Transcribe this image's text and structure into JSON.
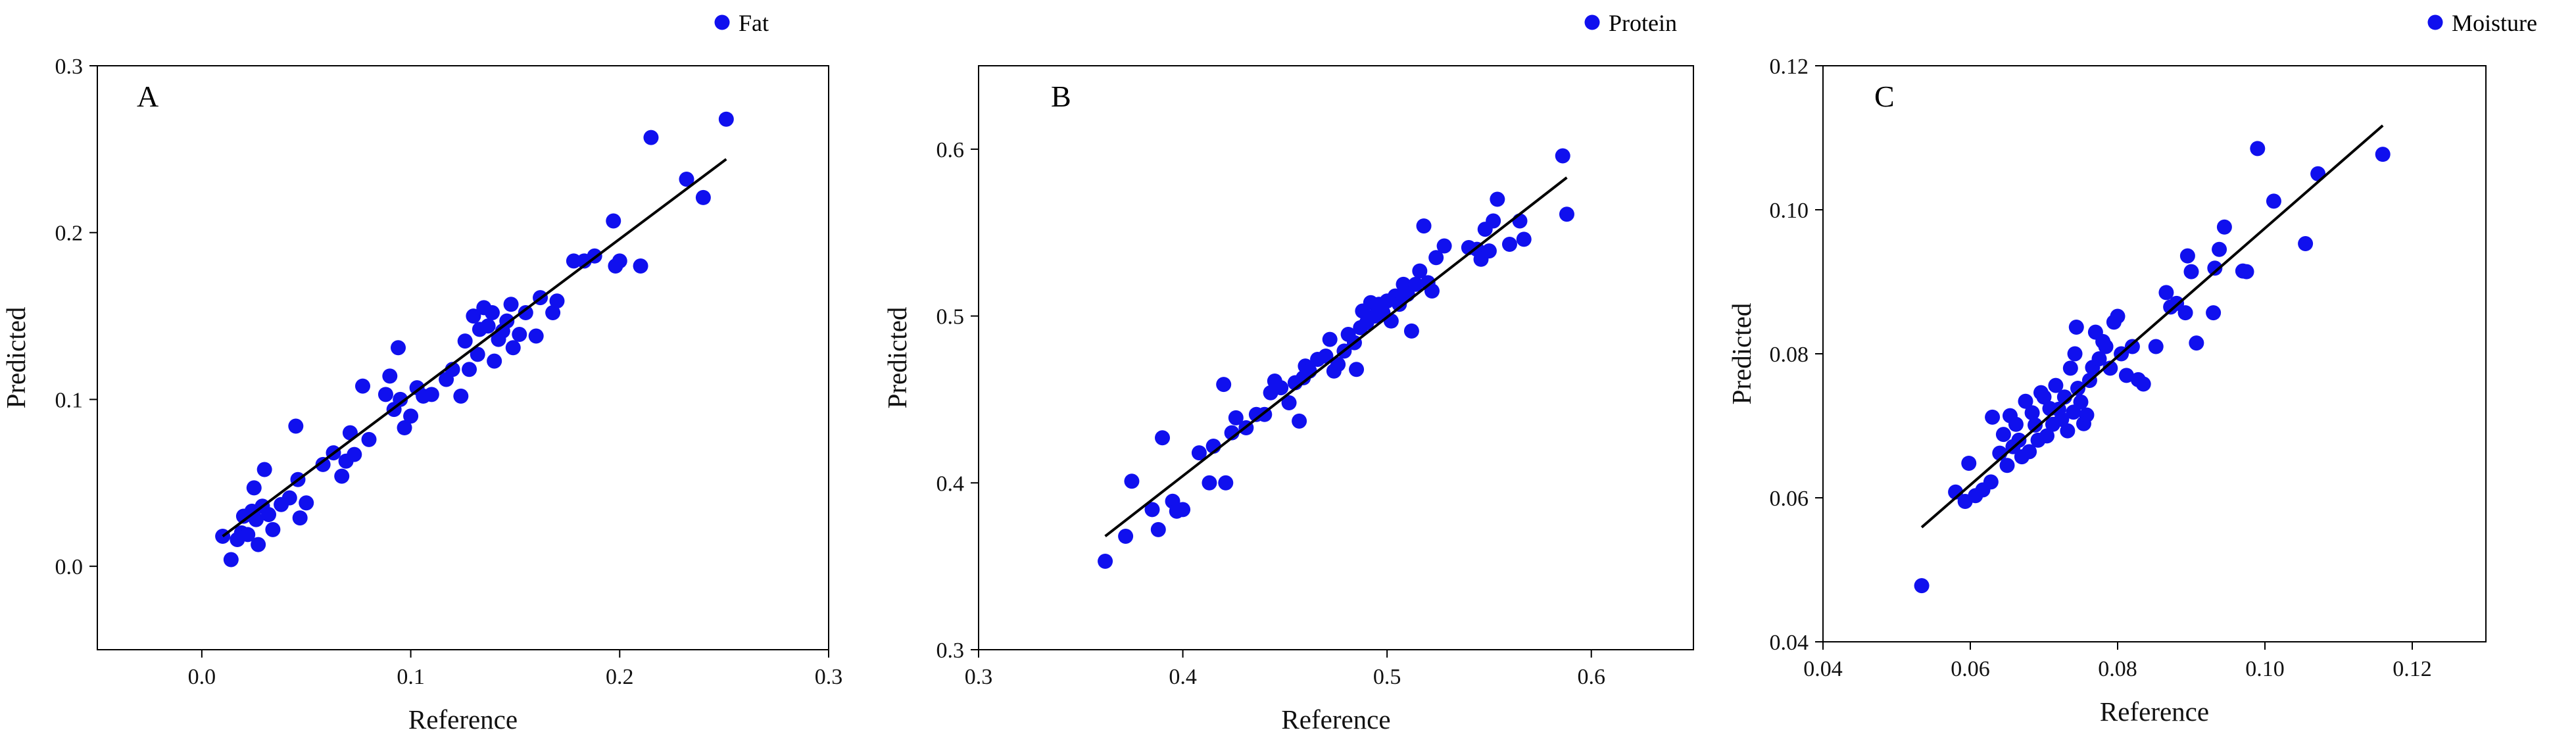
{
  "chart_data": [
    {
      "type": "scatter",
      "panel_label": "A",
      "xlabel": "Reference",
      "ylabel": "Predicted",
      "xlim": [
        -0.05,
        0.3
      ],
      "ylim": [
        -0.05,
        0.3
      ],
      "x_ticks": [
        "0.0",
        "0.1",
        "0.2",
        "0.3"
      ],
      "y_ticks": [
        "0.0",
        "0.1",
        "0.2",
        "0.3"
      ],
      "x_tick_values": [
        0.0,
        0.1,
        0.2,
        0.3
      ],
      "y_tick_values": [
        0.0,
        0.1,
        0.2,
        0.3
      ],
      "grid": false,
      "legend_position": "top-right",
      "point_color": "#1010ee",
      "series": [
        {
          "name": "Fat",
          "points": [
            [
              0.01,
              0.018
            ],
            [
              0.014,
              0.004
            ],
            [
              0.017,
              0.016
            ],
            [
              0.019,
              0.02
            ],
            [
              0.02,
              0.03
            ],
            [
              0.022,
              0.019
            ],
            [
              0.024,
              0.033
            ],
            [
              0.025,
              0.047
            ],
            [
              0.026,
              0.028
            ],
            [
              0.027,
              0.013
            ],
            [
              0.029,
              0.036
            ],
            [
              0.03,
              0.058
            ],
            [
              0.032,
              0.031
            ],
            [
              0.034,
              0.022
            ],
            [
              0.038,
              0.037
            ],
            [
              0.042,
              0.041
            ],
            [
              0.045,
              0.084
            ],
            [
              0.046,
              0.052
            ],
            [
              0.047,
              0.029
            ],
            [
              0.05,
              0.038
            ],
            [
              0.058,
              0.061
            ],
            [
              0.063,
              0.068
            ],
            [
              0.067,
              0.054
            ],
            [
              0.069,
              0.063
            ],
            [
              0.071,
              0.08
            ],
            [
              0.073,
              0.067
            ],
            [
              0.077,
              0.108
            ],
            [
              0.08,
              0.076
            ],
            [
              0.088,
              0.103
            ],
            [
              0.09,
              0.114
            ],
            [
              0.092,
              0.094
            ],
            [
              0.094,
              0.131
            ],
            [
              0.095,
              0.1
            ],
            [
              0.097,
              0.083
            ],
            [
              0.1,
              0.09
            ],
            [
              0.103,
              0.107
            ],
            [
              0.106,
              0.102
            ],
            [
              0.11,
              0.103
            ],
            [
              0.117,
              0.112
            ],
            [
              0.12,
              0.118
            ],
            [
              0.124,
              0.102
            ],
            [
              0.126,
              0.135
            ],
            [
              0.128,
              0.118
            ],
            [
              0.13,
              0.15
            ],
            [
              0.132,
              0.127
            ],
            [
              0.133,
              0.142
            ],
            [
              0.135,
              0.155
            ],
            [
              0.137,
              0.144
            ],
            [
              0.139,
              0.152
            ],
            [
              0.14,
              0.123
            ],
            [
              0.142,
              0.136
            ],
            [
              0.144,
              0.141
            ],
            [
              0.146,
              0.147
            ],
            [
              0.148,
              0.157
            ],
            [
              0.149,
              0.131
            ],
            [
              0.152,
              0.139
            ],
            [
              0.155,
              0.152
            ],
            [
              0.16,
              0.138
            ],
            [
              0.162,
              0.161
            ],
            [
              0.168,
              0.152
            ],
            [
              0.17,
              0.159
            ],
            [
              0.178,
              0.183
            ],
            [
              0.183,
              0.183
            ],
            [
              0.188,
              0.186
            ],
            [
              0.197,
              0.207
            ],
            [
              0.198,
              0.18
            ],
            [
              0.2,
              0.183
            ],
            [
              0.21,
              0.18
            ],
            [
              0.215,
              0.257
            ],
            [
              0.232,
              0.232
            ],
            [
              0.24,
              0.221
            ],
            [
              0.251,
              0.268
            ]
          ]
        }
      ],
      "fit_line": {
        "x": [
          0.01,
          0.251
        ],
        "y": [
          0.018,
          0.244
        ]
      }
    },
    {
      "type": "scatter",
      "panel_label": "B",
      "xlabel": "Reference",
      "ylabel": "Predicted",
      "xlim": [
        0.3,
        0.65
      ],
      "ylim": [
        0.3,
        0.65
      ],
      "x_ticks": [
        "0.3",
        "0.4",
        "0.5",
        "0.6"
      ],
      "y_ticks": [
        "0.3",
        "0.4",
        "0.5",
        "0.6"
      ],
      "x_tick_values": [
        0.3,
        0.4,
        0.5,
        0.6
      ],
      "y_tick_values": [
        0.3,
        0.4,
        0.5,
        0.6
      ],
      "grid": false,
      "legend_position": "top-right",
      "point_color": "#1010ee",
      "series": [
        {
          "name": "Protein",
          "points": [
            [
              0.362,
              0.353
            ],
            [
              0.372,
              0.368
            ],
            [
              0.375,
              0.401
            ],
            [
              0.385,
              0.384
            ],
            [
              0.388,
              0.372
            ],
            [
              0.39,
              0.427
            ],
            [
              0.395,
              0.389
            ],
            [
              0.397,
              0.383
            ],
            [
              0.4,
              0.384
            ],
            [
              0.408,
              0.418
            ],
            [
              0.413,
              0.4
            ],
            [
              0.415,
              0.422
            ],
            [
              0.42,
              0.459
            ],
            [
              0.421,
              0.4
            ],
            [
              0.424,
              0.43
            ],
            [
              0.426,
              0.439
            ],
            [
              0.431,
              0.433
            ],
            [
              0.436,
              0.441
            ],
            [
              0.44,
              0.441
            ],
            [
              0.443,
              0.454
            ],
            [
              0.445,
              0.461
            ],
            [
              0.448,
              0.457
            ],
            [
              0.452,
              0.448
            ],
            [
              0.455,
              0.46
            ],
            [
              0.457,
              0.437
            ],
            [
              0.459,
              0.463
            ],
            [
              0.46,
              0.47
            ],
            [
              0.462,
              0.467
            ],
            [
              0.466,
              0.474
            ],
            [
              0.47,
              0.476
            ],
            [
              0.472,
              0.486
            ],
            [
              0.474,
              0.467
            ],
            [
              0.476,
              0.471
            ],
            [
              0.479,
              0.479
            ],
            [
              0.481,
              0.489
            ],
            [
              0.484,
              0.484
            ],
            [
              0.485,
              0.468
            ],
            [
              0.487,
              0.493
            ],
            [
              0.488,
              0.503
            ],
            [
              0.49,
              0.496
            ],
            [
              0.492,
              0.508
            ],
            [
              0.494,
              0.5
            ],
            [
              0.496,
              0.507
            ],
            [
              0.498,
              0.502
            ],
            [
              0.5,
              0.509
            ],
            [
              0.502,
              0.497
            ],
            [
              0.504,
              0.512
            ],
            [
              0.506,
              0.507
            ],
            [
              0.508,
              0.519
            ],
            [
              0.51,
              0.513
            ],
            [
              0.512,
              0.491
            ],
            [
              0.514,
              0.519
            ],
            [
              0.516,
              0.527
            ],
            [
              0.518,
              0.554
            ],
            [
              0.52,
              0.52
            ],
            [
              0.522,
              0.515
            ],
            [
              0.524,
              0.535
            ],
            [
              0.528,
              0.542
            ],
            [
              0.54,
              0.541
            ],
            [
              0.544,
              0.54
            ],
            [
              0.546,
              0.534
            ],
            [
              0.548,
              0.552
            ],
            [
              0.55,
              0.539
            ],
            [
              0.552,
              0.557
            ],
            [
              0.554,
              0.57
            ],
            [
              0.56,
              0.543
            ],
            [
              0.565,
              0.557
            ],
            [
              0.567,
              0.546
            ],
            [
              0.586,
              0.596
            ],
            [
              0.588,
              0.561
            ]
          ]
        }
      ],
      "fit_line": {
        "x": [
          0.362,
          0.588
        ],
        "y": [
          0.368,
          0.583
        ]
      }
    },
    {
      "type": "scatter",
      "panel_label": "C",
      "xlabel": "Reference",
      "ylabel": "Predicted",
      "xlim": [
        0.04,
        0.13
      ],
      "ylim": [
        0.04,
        0.12
      ],
      "x_ticks": [
        "0.04",
        "0.06",
        "0.08",
        "0.10",
        "0.12"
      ],
      "y_ticks": [
        "0.04",
        "0.06",
        "0.08",
        "0.10",
        "0.12"
      ],
      "x_tick_values": [
        0.04,
        0.06,
        0.08,
        0.1,
        0.12
      ],
      "y_tick_values": [
        0.04,
        0.06,
        0.08,
        0.1,
        0.12
      ],
      "grid": false,
      "legend_position": "top-right",
      "point_color": "#1010ee",
      "series": [
        {
          "name": "Moisture",
          "points": [
            [
              0.0534,
              0.0478
            ],
            [
              0.058,
              0.0608
            ],
            [
              0.0593,
              0.0595
            ],
            [
              0.0598,
              0.0648
            ],
            [
              0.0607,
              0.0603
            ],
            [
              0.0617,
              0.0611
            ],
            [
              0.0628,
              0.0622
            ],
            [
              0.063,
              0.0712
            ],
            [
              0.064,
              0.0662
            ],
            [
              0.0645,
              0.0688
            ],
            [
              0.065,
              0.0645
            ],
            [
              0.0654,
              0.0714
            ],
            [
              0.0658,
              0.0671
            ],
            [
              0.0662,
              0.0702
            ],
            [
              0.0666,
              0.068
            ],
            [
              0.067,
              0.0657
            ],
            [
              0.0675,
              0.0734
            ],
            [
              0.068,
              0.0664
            ],
            [
              0.0684,
              0.0718
            ],
            [
              0.0688,
              0.0701
            ],
            [
              0.0692,
              0.068
            ],
            [
              0.0696,
              0.0746
            ],
            [
              0.07,
              0.074
            ],
            [
              0.0704,
              0.0686
            ],
            [
              0.0708,
              0.0724
            ],
            [
              0.0712,
              0.0702
            ],
            [
              0.0716,
              0.0756
            ],
            [
              0.072,
              0.0723
            ],
            [
              0.0724,
              0.0709
            ],
            [
              0.0728,
              0.074
            ],
            [
              0.0732,
              0.0693
            ],
            [
              0.0736,
              0.078
            ],
            [
              0.074,
              0.0719
            ],
            [
              0.0742,
              0.08
            ],
            [
              0.0744,
              0.0837
            ],
            [
              0.0746,
              0.0752
            ],
            [
              0.075,
              0.0733
            ],
            [
              0.0754,
              0.0703
            ],
            [
              0.0758,
              0.0715
            ],
            [
              0.0762,
              0.0763
            ],
            [
              0.0766,
              0.0781
            ],
            [
              0.077,
              0.083
            ],
            [
              0.0775,
              0.0793
            ],
            [
              0.078,
              0.0817
            ],
            [
              0.0784,
              0.081
            ],
            [
              0.079,
              0.078
            ],
            [
              0.0795,
              0.0844
            ],
            [
              0.08,
              0.0852
            ],
            [
              0.0805,
              0.08
            ],
            [
              0.0812,
              0.077
            ],
            [
              0.082,
              0.081
            ],
            [
              0.0828,
              0.0764
            ],
            [
              0.0835,
              0.0758
            ],
            [
              0.0852,
              0.081
            ],
            [
              0.0866,
              0.0885
            ],
            [
              0.0872,
              0.0865
            ],
            [
              0.088,
              0.087
            ],
            [
              0.0892,
              0.0857
            ],
            [
              0.0895,
              0.0936
            ],
            [
              0.09,
              0.0914
            ],
            [
              0.0907,
              0.0815
            ],
            [
              0.093,
              0.0857
            ],
            [
              0.0932,
              0.0919
            ],
            [
              0.0938,
              0.0945
            ],
            [
              0.0945,
              0.0976
            ],
            [
              0.097,
              0.0915
            ],
            [
              0.0975,
              0.0914
            ],
            [
              0.099,
              0.1085
            ],
            [
              0.1012,
              0.1012
            ],
            [
              0.1055,
              0.0953
            ],
            [
              0.1072,
              0.105
            ],
            [
              0.116,
              0.1077
            ]
          ]
        }
      ],
      "fit_line": {
        "x": [
          0.0534,
          0.116
        ],
        "y": [
          0.0559,
          0.1117
        ]
      }
    }
  ]
}
